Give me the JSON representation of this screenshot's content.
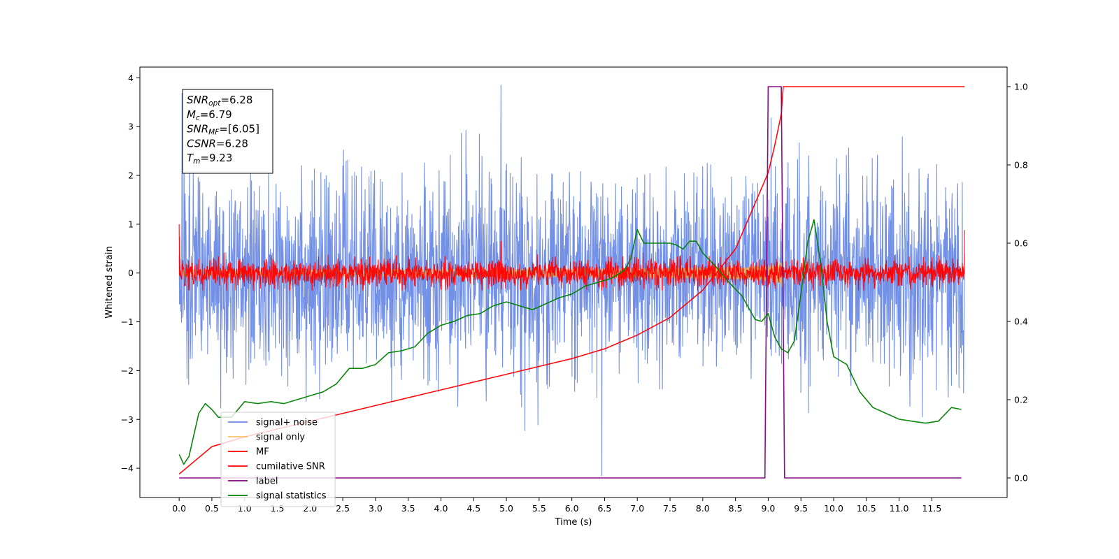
{
  "chart_data": {
    "type": "line",
    "xlabel": "Time (s)",
    "ylabel": "Whitened strain",
    "xlim": [
      -0.6,
      12.65
    ],
    "ylim_left": [
      -4.6,
      4.22
    ],
    "ylim_right": [
      -0.05,
      1.05
    ],
    "x_ticks": [
      "0.0",
      "0.5",
      "1.0",
      "1.5",
      "2.0",
      "2.5",
      "3.0",
      "3.5",
      "4.0",
      "4.5",
      "5.0",
      "5.5",
      "6.0",
      "6.5",
      "7.0",
      "7.5",
      "8.0",
      "8.5",
      "9.0",
      "9.5",
      "10.0",
      "10.5",
      "11.0",
      "11.5"
    ],
    "y_ticks_left": [
      4,
      3,
      2,
      1,
      0,
      -1,
      -2,
      -3,
      -4
    ],
    "y_ticks_left_labels": [
      "4",
      "3",
      "2",
      "1",
      "0",
      "−1",
      "−2",
      "−3",
      "−4"
    ],
    "y_ticks_right": [
      1.0,
      0.8,
      0.6,
      0.4,
      0.2,
      0.0
    ],
    "y_ticks_right_labels": [
      "1.0",
      "0.8",
      "0.6",
      "0.4",
      "0.2",
      "0.0"
    ],
    "legend_position": "lower-left",
    "grid": false,
    "annotation": {
      "lines": [
        {
          "var": "SNR",
          "sub": "opt",
          "value": "=6.28"
        },
        {
          "var": "M",
          "sub": "c",
          "value": "=6.79"
        },
        {
          "var": "SNR",
          "sub": "MF",
          "value": "=[6.05]"
        },
        {
          "var": "CSNR",
          "sub": "",
          "value": "=6.28"
        },
        {
          "var": "T",
          "sub": "m",
          "value": "=9.23"
        }
      ]
    },
    "series": [
      {
        "name": "signal+ noise",
        "axis": "left",
        "color": "#6b8ae6",
        "kind": "noise",
        "x_range": [
          0.0,
          12.0
        ],
        "sigma": 1.0,
        "peak_max": 3.85,
        "peak_min": -4.15
      },
      {
        "name": "signal only",
        "axis": "left",
        "color": "#f5b041",
        "kind": "chirp",
        "x_range": [
          0.0,
          9.23
        ],
        "amplitude_max": 0.45
      },
      {
        "name": "MF",
        "axis": "left",
        "color": "#ff0000",
        "kind": "noise",
        "x_range": [
          0.0,
          12.0
        ],
        "sigma": 0.14,
        "peak_max": 0.65,
        "peak_min": -0.35,
        "edge_start": 1.0,
        "edge_end": 0.88
      },
      {
        "name": "cumilative SNR",
        "axis": "right",
        "color": "#ff0000",
        "kind": "curve",
        "x": [
          0.0,
          0.5,
          1.0,
          1.5,
          2.0,
          2.5,
          3.0,
          3.5,
          4.0,
          4.5,
          5.0,
          5.5,
          6.0,
          6.5,
          7.0,
          7.5,
          8.0,
          8.5,
          9.0,
          9.1,
          9.2,
          9.23,
          12.0
        ],
        "y": [
          0.01,
          0.08,
          0.105,
          0.125,
          0.145,
          0.165,
          0.185,
          0.205,
          0.225,
          0.245,
          0.265,
          0.285,
          0.305,
          0.33,
          0.365,
          0.41,
          0.48,
          0.585,
          0.78,
          0.85,
          0.93,
          1.0,
          1.0
        ]
      },
      {
        "name": "label",
        "axis": "right",
        "color": "#800080",
        "kind": "curve",
        "x": [
          0.0,
          8.95,
          9.0,
          9.2,
          9.25,
          11.95
        ],
        "y": [
          0.0,
          0.0,
          1.0,
          1.0,
          0.0,
          0.0
        ]
      },
      {
        "name": "signal statistics",
        "axis": "right",
        "color": "#008000",
        "kind": "curve",
        "x": [
          0.0,
          0.07,
          0.15,
          0.3,
          0.4,
          0.5,
          0.6,
          0.8,
          1.0,
          1.2,
          1.4,
          1.6,
          1.8,
          2.0,
          2.2,
          2.4,
          2.6,
          2.8,
          3.0,
          3.2,
          3.4,
          3.6,
          3.8,
          4.0,
          4.2,
          4.4,
          4.6,
          4.8,
          5.0,
          5.2,
          5.4,
          5.6,
          5.8,
          6.0,
          6.2,
          6.4,
          6.5,
          6.6,
          6.8,
          6.9,
          7.0,
          7.1,
          7.3,
          7.5,
          7.6,
          7.7,
          7.8,
          7.9,
          8.0,
          8.2,
          8.4,
          8.6,
          8.8,
          8.9,
          9.0,
          9.1,
          9.2,
          9.3,
          9.4,
          9.5,
          9.6,
          9.7,
          9.8,
          9.9,
          10.0,
          10.2,
          10.4,
          10.6,
          10.8,
          11.0,
          11.2,
          11.4,
          11.6,
          11.8,
          11.95
        ],
        "y": [
          0.06,
          0.035,
          0.055,
          0.165,
          0.19,
          0.175,
          0.155,
          0.155,
          0.195,
          0.19,
          0.195,
          0.19,
          0.2,
          0.21,
          0.22,
          0.24,
          0.28,
          0.28,
          0.29,
          0.32,
          0.325,
          0.335,
          0.37,
          0.39,
          0.4,
          0.415,
          0.42,
          0.44,
          0.45,
          0.44,
          0.43,
          0.445,
          0.46,
          0.47,
          0.49,
          0.5,
          0.505,
          0.51,
          0.53,
          0.56,
          0.635,
          0.6,
          0.6,
          0.6,
          0.595,
          0.585,
          0.605,
          0.605,
          0.575,
          0.54,
          0.5,
          0.465,
          0.405,
          0.4,
          0.42,
          0.36,
          0.33,
          0.32,
          0.35,
          0.47,
          0.6,
          0.66,
          0.55,
          0.4,
          0.31,
          0.29,
          0.22,
          0.18,
          0.165,
          0.15,
          0.145,
          0.14,
          0.145,
          0.18,
          0.175
        ]
      }
    ]
  }
}
